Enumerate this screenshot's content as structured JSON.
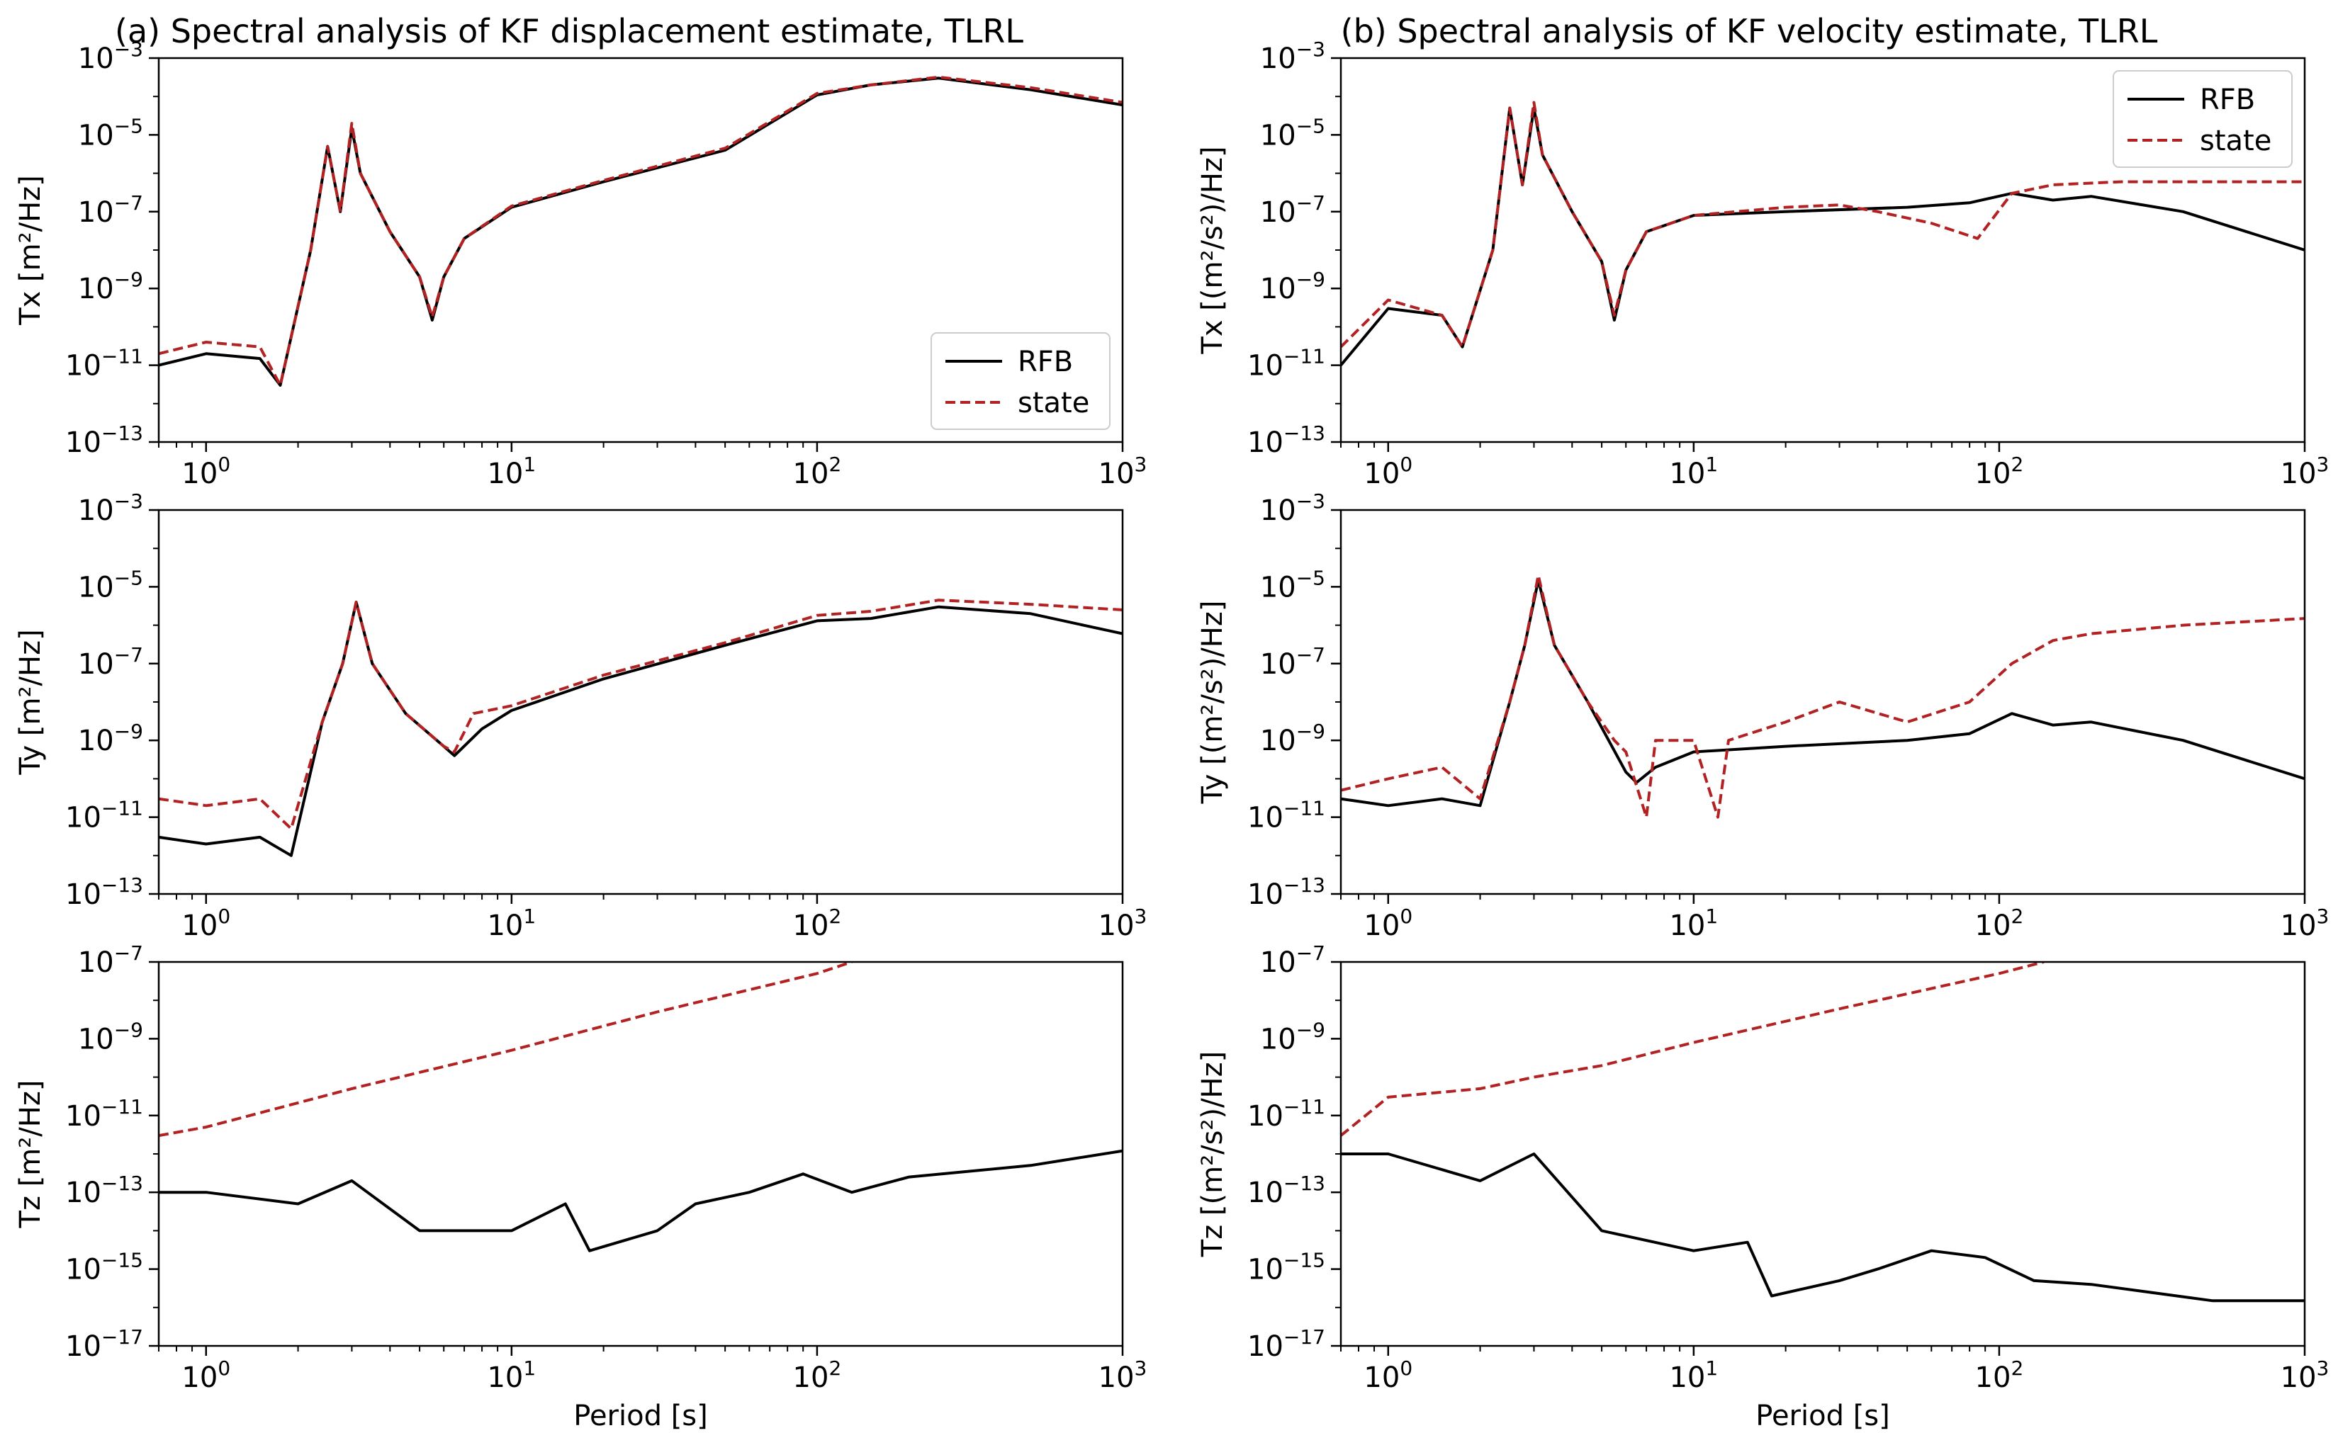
{
  "figure": {
    "columns": [
      {
        "title": "(a) Spectral analysis of KF displacement estimate, TLRL"
      },
      {
        "title": "(b) Spectral analysis of KF velocity estimate, TLRL"
      }
    ],
    "xlabel": "Period [s]"
  },
  "colors": {
    "RFB": "#000000",
    "state": "#b22222"
  },
  "chart_data": [
    {
      "id": "a-Tx",
      "type": "line",
      "title": "(a) Spectral analysis of KF displacement estimate, TLRL",
      "xscale": "log",
      "yscale": "log",
      "xlim": [
        0.7,
        1000
      ],
      "ylim": [
        1e-13,
        0.001
      ],
      "xticks": [
        "10^0",
        "10^1",
        "10^2",
        "10^3"
      ],
      "yticks": [
        "10^-13",
        "10^-11",
        "10^-9",
        "10^-7",
        "10^-5",
        "10^-3"
      ],
      "ylabel": "Tx [m²/Hz]",
      "xlabel": "",
      "legend": {
        "loc": "lower right",
        "entries": [
          "RFB",
          "state"
        ]
      },
      "series": [
        {
          "name": "RFB",
          "style": "solid",
          "color": "#000000",
          "x": [
            0.7,
            1.0,
            1.5,
            1.75,
            2.2,
            2.5,
            2.75,
            3.0,
            3.2,
            4.0,
            5.0,
            5.5,
            6.0,
            7.0,
            10,
            20,
            50,
            100,
            150,
            250,
            500,
            1000
          ],
          "y": [
            1e-11,
            2e-11,
            1.5e-11,
            3e-12,
            1e-08,
            5e-06,
            1e-07,
            1.5e-05,
            1e-06,
            3e-08,
            2e-09,
            1.5e-10,
            2e-09,
            2e-08,
            1.3e-07,
            6e-07,
            4e-06,
            0.00011,
            0.0002,
            0.0003,
            0.00015,
            6e-05
          ]
        },
        {
          "name": "state",
          "style": "dashed",
          "color": "#b22222",
          "x": [
            0.7,
            1.0,
            1.5,
            1.75,
            2.2,
            2.5,
            2.75,
            3.0,
            3.2,
            4.0,
            5.0,
            5.5,
            6.0,
            7.0,
            10,
            20,
            50,
            100,
            150,
            250,
            500,
            1000
          ],
          "y": [
            2e-11,
            4e-11,
            3e-11,
            3e-12,
            1e-08,
            5e-06,
            1e-07,
            2e-05,
            1e-06,
            3e-08,
            2e-09,
            1.8e-10,
            2e-09,
            2e-08,
            1.4e-07,
            6.5e-07,
            4.5e-06,
            0.00012,
            0.0002,
            0.00032,
            0.00017,
            7e-05
          ]
        }
      ]
    },
    {
      "id": "a-Ty",
      "type": "line",
      "title": "",
      "xscale": "log",
      "yscale": "log",
      "xlim": [
        0.7,
        1000
      ],
      "ylim": [
        1e-13,
        0.001
      ],
      "xticks": [
        "10^0",
        "10^1",
        "10^2",
        "10^3"
      ],
      "yticks": [
        "10^-13",
        "10^-11",
        "10^-9",
        "10^-7",
        "10^-5",
        "10^-3"
      ],
      "ylabel": "Ty [m²/Hz]",
      "xlabel": "",
      "series": [
        {
          "name": "RFB",
          "style": "solid",
          "color": "#000000",
          "x": [
            0.7,
            1.0,
            1.5,
            1.9,
            2.4,
            2.8,
            3.1,
            3.5,
            4.5,
            6.0,
            6.5,
            8,
            10,
            20,
            50,
            100,
            150,
            250,
            500,
            1000
          ],
          "y": [
            3e-12,
            2e-12,
            3e-12,
            1e-12,
            3e-09,
            1e-07,
            4e-06,
            1e-07,
            5e-09,
            7e-10,
            4e-10,
            2e-09,
            6e-09,
            4e-08,
            3e-07,
            1.3e-06,
            1.5e-06,
            3e-06,
            2e-06,
            6e-07
          ]
        },
        {
          "name": "state",
          "style": "dashed",
          "color": "#b22222",
          "x": [
            0.7,
            1.0,
            1.5,
            1.9,
            2.4,
            2.8,
            3.1,
            3.5,
            4.5,
            6.0,
            6.5,
            7.5,
            10,
            20,
            50,
            100,
            150,
            250,
            500,
            1000
          ],
          "y": [
            3e-11,
            2e-11,
            3e-11,
            5e-12,
            3e-09,
            1e-07,
            4e-06,
            1e-07,
            5e-09,
            7e-10,
            5e-10,
            5e-09,
            8e-09,
            5e-08,
            3.5e-07,
            1.8e-06,
            2.3e-06,
            4.5e-06,
            3.5e-06,
            2.5e-06
          ]
        }
      ]
    },
    {
      "id": "a-Tz",
      "type": "line",
      "title": "",
      "xscale": "log",
      "yscale": "log",
      "xlim": [
        0.7,
        1000
      ],
      "ylim": [
        1e-17,
        1e-07
      ],
      "xticks": [
        "10^0",
        "10^1",
        "10^2",
        "10^3"
      ],
      "yticks": [
        "10^-17",
        "10^-15",
        "10^-13",
        "10^-11",
        "10^-9",
        "10^-7"
      ],
      "ylabel": "Tz [m²/Hz]",
      "xlabel": "Period [s]",
      "series": [
        {
          "name": "RFB",
          "style": "solid",
          "color": "#000000",
          "x": [
            0.7,
            1.0,
            2.0,
            3.0,
            5.0,
            10,
            15,
            18,
            30,
            40,
            60,
            90,
            130,
            200,
            500,
            1000
          ],
          "y": [
            1e-13,
            1e-13,
            5e-14,
            2e-13,
            1e-14,
            1e-14,
            5e-14,
            3e-15,
            1e-14,
            5e-14,
            1e-13,
            3e-13,
            1e-13,
            2.5e-13,
            5e-13,
            1.2e-12
          ]
        },
        {
          "name": "state",
          "style": "dashed",
          "color": "#b22222",
          "x": [
            0.7,
            1.0,
            3.0,
            10,
            30,
            100,
            130
          ],
          "y": [
            3e-12,
            5e-12,
            5e-11,
            5e-10,
            5e-09,
            5e-08,
            1e-07
          ]
        }
      ]
    },
    {
      "id": "b-Tx",
      "type": "line",
      "title": "(b) Spectral analysis of KF velocity estimate, TLRL",
      "xscale": "log",
      "yscale": "log",
      "xlim": [
        0.7,
        1000
      ],
      "ylim": [
        1e-13,
        0.001
      ],
      "xticks": [
        "10^0",
        "10^1",
        "10^2",
        "10^3"
      ],
      "yticks": [
        "10^-13",
        "10^-11",
        "10^-9",
        "10^-7",
        "10^-5",
        "10^-3"
      ],
      "ylabel": "Tx [(m²/s²)/Hz]",
      "xlabel": "",
      "legend": {
        "loc": "upper right",
        "entries": [
          "RFB",
          "state"
        ]
      },
      "series": [
        {
          "name": "RFB",
          "style": "solid",
          "color": "#000000",
          "x": [
            0.7,
            1.0,
            1.5,
            1.75,
            2.2,
            2.5,
            2.75,
            3.0,
            3.2,
            4.0,
            5.0,
            5.5,
            6.0,
            7.0,
            10,
            20,
            50,
            80,
            110,
            150,
            200,
            400,
            1000
          ],
          "y": [
            1e-11,
            3e-10,
            2e-10,
            3e-11,
            1e-08,
            5e-05,
            5e-07,
            5e-05,
            3e-06,
            1e-07,
            5e-09,
            1.5e-10,
            3e-09,
            3e-08,
            8e-08,
            1e-07,
            1.3e-07,
            1.7e-07,
            3e-07,
            2e-07,
            2.5e-07,
            1e-07,
            1e-08
          ]
        },
        {
          "name": "state",
          "style": "dashed",
          "color": "#b22222",
          "x": [
            0.7,
            1.0,
            1.5,
            1.75,
            2.2,
            2.5,
            2.75,
            3.0,
            3.2,
            4.0,
            5.0,
            5.5,
            6.0,
            7.0,
            10,
            20,
            30,
            40,
            60,
            85,
            110,
            150,
            250,
            500,
            1000
          ],
          "y": [
            3e-11,
            5e-10,
            2e-10,
            3e-11,
            1e-08,
            5e-05,
            5e-07,
            7e-05,
            3e-06,
            1e-07,
            5e-09,
            2e-10,
            3e-09,
            3e-08,
            8e-08,
            1.3e-07,
            1.5e-07,
            1e-07,
            5e-08,
            2e-08,
            3e-07,
            5e-07,
            6e-07,
            6e-07,
            6e-07
          ]
        }
      ]
    },
    {
      "id": "b-Ty",
      "type": "line",
      "title": "",
      "xscale": "log",
      "yscale": "log",
      "xlim": [
        0.7,
        1000
      ],
      "ylim": [
        1e-13,
        0.001
      ],
      "xticks": [
        "10^0",
        "10^1",
        "10^2",
        "10^3"
      ],
      "yticks": [
        "10^-13",
        "10^-11",
        "10^-9",
        "10^-7",
        "10^-5",
        "10^-3"
      ],
      "ylabel": "Ty [(m²/s²)/Hz]",
      "xlabel": "",
      "series": [
        {
          "name": "RFB",
          "style": "solid",
          "color": "#000000",
          "x": [
            0.7,
            1.0,
            1.5,
            2.0,
            2.5,
            2.8,
            3.1,
            3.5,
            4.5,
            6.0,
            6.5,
            7.5,
            10,
            20,
            50,
            80,
            110,
            150,
            200,
            400,
            1000
          ],
          "y": [
            3e-11,
            2e-11,
            3e-11,
            2e-11,
            1e-08,
            3e-07,
            1.5e-05,
            3e-07,
            1e-08,
            1.5e-10,
            8e-11,
            2e-10,
            5e-10,
            7e-10,
            1e-09,
            1.5e-09,
            5e-09,
            2.5e-09,
            3e-09,
            1e-09,
            1e-10
          ]
        },
        {
          "name": "state",
          "style": "dashed",
          "color": "#b22222",
          "x": [
            0.7,
            1.0,
            1.5,
            2.0,
            2.5,
            2.8,
            3.1,
            3.5,
            4.5,
            5.5,
            6.0,
            7.0,
            7.5,
            10,
            12,
            13,
            20,
            30,
            50,
            80,
            110,
            150,
            200,
            400,
            1000
          ],
          "y": [
            5e-11,
            1e-10,
            2e-10,
            3e-11,
            1e-08,
            3e-07,
            2e-05,
            3e-07,
            1e-08,
            1e-09,
            5e-10,
            1e-11,
            1e-09,
            1e-09,
            1e-11,
            1e-09,
            3e-09,
            1e-08,
            3e-09,
            1e-08,
            1e-07,
            4e-07,
            6e-07,
            1e-06,
            1.5e-06
          ]
        }
      ]
    },
    {
      "id": "b-Tz",
      "type": "line",
      "title": "",
      "xscale": "log",
      "yscale": "log",
      "xlim": [
        0.7,
        1000
      ],
      "ylim": [
        1e-17,
        1e-07
      ],
      "xticks": [
        "10^0",
        "10^1",
        "10^2",
        "10^3"
      ],
      "yticks": [
        "10^-17",
        "10^-15",
        "10^-13",
        "10^-11",
        "10^-9",
        "10^-7"
      ],
      "ylabel": "Tz [(m²/s²)/Hz]",
      "xlabel": "Period [s]",
      "series": [
        {
          "name": "RFB",
          "style": "solid",
          "color": "#000000",
          "x": [
            0.7,
            1.0,
            2.0,
            3.0,
            5.0,
            10,
            15,
            18,
            30,
            40,
            60,
            90,
            130,
            200,
            500,
            1000
          ],
          "y": [
            1e-12,
            1e-12,
            2e-13,
            1e-12,
            1e-14,
            3e-15,
            5e-15,
            2e-16,
            5e-16,
            1e-15,
            3e-15,
            2e-15,
            5e-16,
            4e-16,
            1.5e-16,
            1.5e-16
          ]
        },
        {
          "name": "state",
          "style": "dashed",
          "color": "#b22222",
          "x": [
            0.7,
            1.0,
            2.0,
            3.0,
            5.0,
            10,
            30,
            100,
            140
          ],
          "y": [
            3e-12,
            3e-11,
            5e-11,
            1e-10,
            2e-10,
            8e-10,
            6e-09,
            5e-08,
            1e-07
          ]
        }
      ]
    }
  ]
}
